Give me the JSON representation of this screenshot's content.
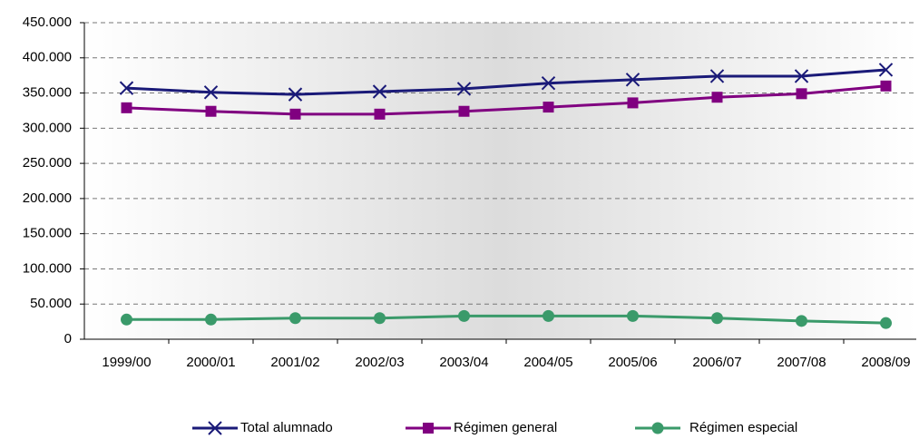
{
  "chart_data": {
    "type": "line",
    "categories": [
      "1999/00",
      "2000/01",
      "2001/02",
      "2002/03",
      "2003/04",
      "2004/05",
      "2005/06",
      "2006/07",
      "2007/08",
      "2008/09"
    ],
    "series": [
      {
        "name": "Total alumnado",
        "color": "#1a1a78",
        "marker": "x",
        "values": [
          357000,
          351000,
          348000,
          352000,
          356000,
          364000,
          369000,
          374000,
          374000,
          383000
        ]
      },
      {
        "name": "Régimen general",
        "color": "#800080",
        "marker": "square",
        "values": [
          329000,
          324000,
          320000,
          320000,
          324000,
          330000,
          336000,
          344000,
          349000,
          360000
        ]
      },
      {
        "name": "Régimen especial",
        "color": "#3a9a6a",
        "marker": "circle",
        "values": [
          28000,
          28000,
          30000,
          30000,
          33000,
          33000,
          33000,
          30000,
          26000,
          23000
        ]
      }
    ],
    "ylim": [
      0,
      450000
    ],
    "yticks": [
      0,
      {
        "value": 50000,
        "label": "50.000"
      },
      {
        "value": 100000,
        "label": "100.000"
      },
      {
        "value": 150000,
        "label": "150.000"
      },
      {
        "value": 200000,
        "label": "200.000"
      },
      {
        "value": 250000,
        "label": "250.000"
      },
      {
        "value": 300000,
        "label": "300.000"
      },
      {
        "value": 350000,
        "label": "350.000"
      },
      {
        "value": 400000,
        "label": "400.000"
      },
      {
        "value": 450000,
        "label": "450.000"
      }
    ],
    "grid": true
  }
}
